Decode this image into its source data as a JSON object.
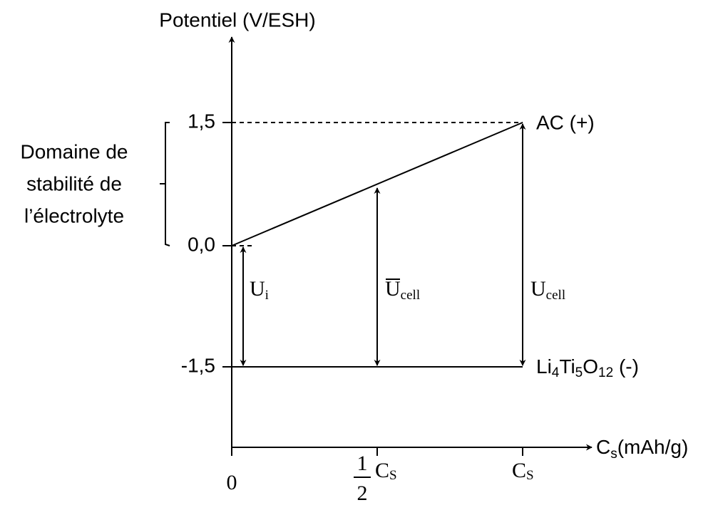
{
  "y_axis": {
    "label": "Potentiel (V/ESH)",
    "ticks": [
      "1,5",
      "0,0",
      "-1,5"
    ]
  },
  "x_axis": {
    "label": {
      "base": "C",
      "sub": "s",
      "rest": "(mAh/g)"
    },
    "ticks": {
      "zero": "0",
      "half": {
        "numerator": "1",
        "denominator": "2",
        "base": "C",
        "sub": "S"
      },
      "full": {
        "base": "C",
        "sub": "S"
      }
    }
  },
  "stability_domain": [
    "Domaine de",
    "stabilité de",
    "l’électrolyte"
  ],
  "electrodes": {
    "positive": "AC (+)",
    "negative": {
      "parts": [
        [
          "Li",
          "4"
        ],
        [
          "Ti",
          "5"
        ],
        [
          "O",
          "12"
        ]
      ],
      "rest": " (-)"
    }
  },
  "voltages": {
    "initial": {
      "base": "U",
      "sub": "i"
    },
    "mean": {
      "base": "U",
      "sub": "cell"
    },
    "max": {
      "base": "U",
      "sub": "cell"
    }
  }
}
